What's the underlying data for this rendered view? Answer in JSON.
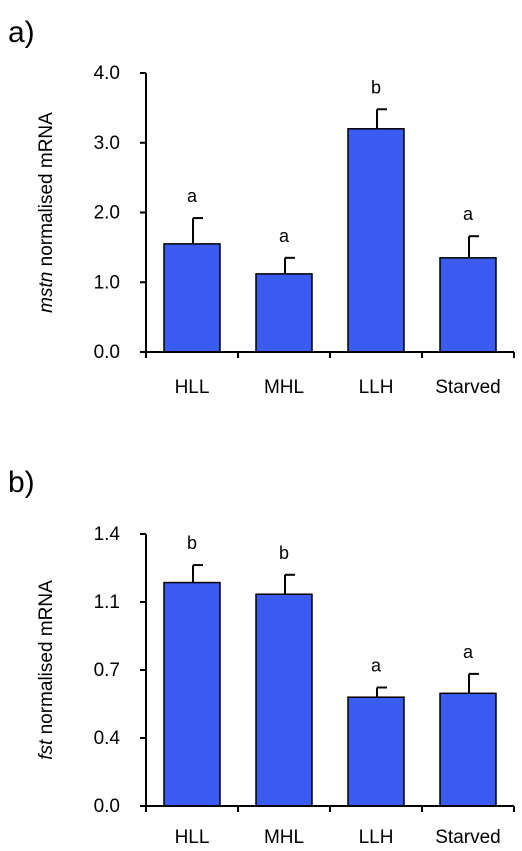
{
  "chart_data": [
    {
      "panel_label": "a)",
      "type": "bar",
      "ylabel_italic": "mstn",
      "ylabel_rest": " normalised mRNA",
      "categories": [
        "HLL",
        "MHL",
        "LLH",
        "Starved"
      ],
      "values": [
        1.55,
        1.12,
        3.2,
        1.35
      ],
      "errors": [
        0.37,
        0.23,
        0.28,
        0.31
      ],
      "significance": [
        "a",
        "a",
        "b",
        "a"
      ],
      "ylim": [
        0,
        4.0
      ],
      "yticks": [
        0.0,
        1.0,
        2.0,
        3.0,
        4.0
      ],
      "ytick_labels": [
        "0.0",
        "1.0",
        "2.0",
        "3.0",
        "4.0"
      ],
      "bar_color": "#3a5cf2"
    },
    {
      "panel_label": "b)",
      "type": "bar",
      "ylabel_italic": "fst",
      "ylabel_rest": " normalised mRNA",
      "categories": [
        "HLL",
        "MHL",
        "LLH",
        "Starved"
      ],
      "values": [
        1.15,
        1.09,
        0.56,
        0.58
      ],
      "errors": [
        0.09,
        0.1,
        0.05,
        0.1
      ],
      "significance": [
        "b",
        "b",
        "a",
        "a"
      ],
      "ylim": [
        0,
        1.4
      ],
      "yticks": [
        0.0,
        0.35,
        0.7,
        1.05,
        1.4
      ],
      "ytick_labels": [
        "0.0",
        "0.4",
        "0.7",
        "1.1",
        "1.4"
      ],
      "bar_color": "#3a5cf2"
    }
  ]
}
